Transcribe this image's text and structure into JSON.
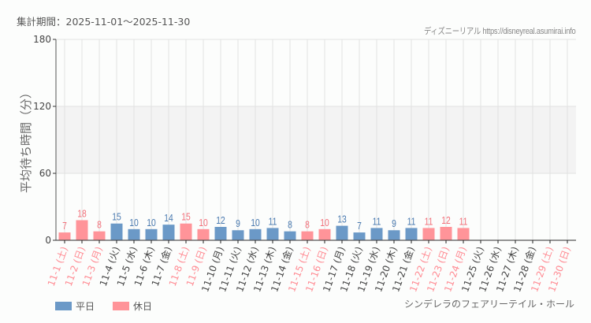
{
  "header": {
    "period_label": "集計期間：2025-11-01～2025-11-30",
    "credit": "ディズニーリアル https://disneyreal.asumirai.info"
  },
  "footer": {
    "attraction_name": "シンデレラのフェアリーテイル・ホール"
  },
  "legend": {
    "weekday": {
      "label": "平日",
      "color": "#6b99c7"
    },
    "holiday": {
      "label": "休日",
      "color": "#ff9499"
    }
  },
  "colors": {
    "weekday_bar": "#6b99c7",
    "holiday_bar": "#ff9499",
    "weekday_label": "#4a7ab0",
    "holiday_label": "#f2707a",
    "weekday_tick": "#444444",
    "holiday_tick": "#ff8a92",
    "band": "#f3f3f3",
    "grid": "#e2e2e2",
    "axis": "#555555"
  },
  "chart_data": {
    "type": "bar",
    "title": "",
    "xlabel": "",
    "ylabel": "平均待ち時間（分）",
    "ylim": [
      0,
      180
    ],
    "yticks": [
      0,
      60,
      120,
      180
    ],
    "grid": true,
    "highlight_band": [
      60,
      120
    ],
    "legend_position": "bottom-left",
    "categories": [
      "11-1 (土)",
      "11-2 (日)",
      "11-3 (月)",
      "11-4 (火)",
      "11-5 (水)",
      "11-6 (木)",
      "11-7 (金)",
      "11-8 (土)",
      "11-9 (日)",
      "11-10 (月)",
      "11-11 (火)",
      "11-12 (水)",
      "11-13 (木)",
      "11-14 (金)",
      "11-15 (土)",
      "11-16 (日)",
      "11-17 (月)",
      "11-18 (火)",
      "11-19 (水)",
      "11-20 (木)",
      "11-21 (金)",
      "11-22 (土)",
      "11-23 (日)",
      "11-24 (月)",
      "11-25 (火)",
      "11-26 (水)",
      "11-27 (木)",
      "11-28 (金)",
      "11-29 (土)",
      "11-30 (日)"
    ],
    "day_type": [
      "holiday",
      "holiday",
      "holiday",
      "weekday",
      "weekday",
      "weekday",
      "weekday",
      "holiday",
      "holiday",
      "weekday",
      "weekday",
      "weekday",
      "weekday",
      "weekday",
      "holiday",
      "holiday",
      "weekday",
      "weekday",
      "weekday",
      "weekday",
      "weekday",
      "holiday",
      "holiday",
      "holiday",
      "weekday",
      "weekday",
      "weekday",
      "weekday",
      "holiday",
      "holiday"
    ],
    "values": [
      7,
      18,
      8,
      15,
      10,
      10,
      14,
      15,
      10,
      12,
      9,
      10,
      11,
      8,
      8,
      10,
      13,
      7,
      11,
      9,
      11,
      11,
      12,
      11,
      null,
      null,
      null,
      null,
      null,
      null
    ],
    "series": [
      {
        "name": "平日",
        "values": [
          null,
          null,
          null,
          15,
          10,
          10,
          14,
          null,
          null,
          12,
          9,
          10,
          11,
          8,
          null,
          null,
          13,
          7,
          11,
          9,
          11,
          null,
          null,
          null,
          null,
          null,
          null,
          null,
          null,
          null
        ]
      },
      {
        "name": "休日",
        "values": [
          7,
          18,
          8,
          null,
          null,
          null,
          null,
          15,
          10,
          null,
          null,
          null,
          null,
          null,
          8,
          10,
          null,
          null,
          null,
          null,
          null,
          11,
          12,
          11,
          null,
          null,
          null,
          null,
          null,
          null
        ]
      }
    ]
  }
}
